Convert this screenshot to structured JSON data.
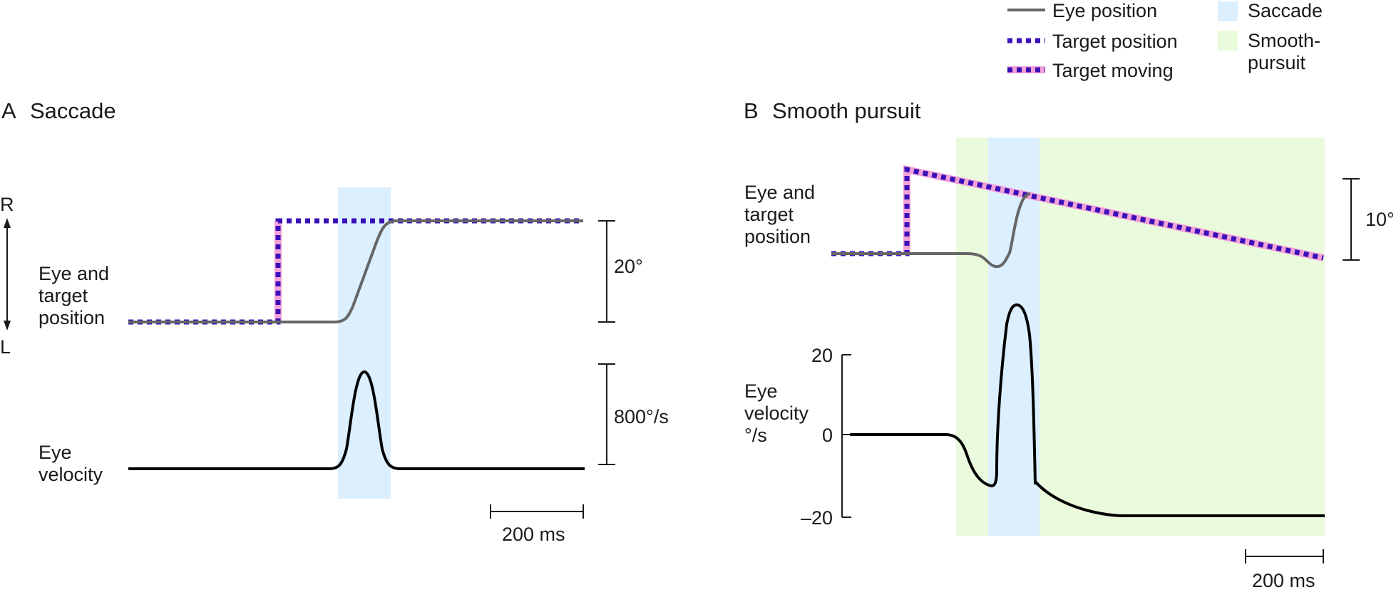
{
  "legend": {
    "eye_position": "Eye position",
    "target_position": "Target position",
    "target_moving": "Target moving",
    "saccade": "Saccade",
    "smooth_pursuit_line1": "Smooth-",
    "smooth_pursuit_line2": "pursuit"
  },
  "panel_a": {
    "letter": "A",
    "title": "Saccade",
    "axis_top": "R",
    "axis_bottom": "L",
    "position_label": [
      "Eye and",
      "target",
      "position"
    ],
    "velocity_label": [
      "Eye",
      "velocity"
    ],
    "position_scale": "20°",
    "velocity_scale": "800°/s",
    "time_scale": "200 ms"
  },
  "panel_b": {
    "letter": "B",
    "title": "Smooth pursuit",
    "position_label": [
      "Eye and",
      "target",
      "position"
    ],
    "velocity_label": [
      "Eye",
      "velocity",
      "°/s"
    ],
    "position_scale": "10°",
    "time_scale": "200 ms",
    "velocity_ticks": [
      "20",
      "0",
      "–20"
    ]
  },
  "colors": {
    "eye_position": "#666666",
    "target_position": "#3a10b8",
    "target_moving": "#f2a1d8",
    "saccade_band": "#dcefff",
    "pursuit_band": "#eafadc",
    "velocity": "#000000"
  }
}
